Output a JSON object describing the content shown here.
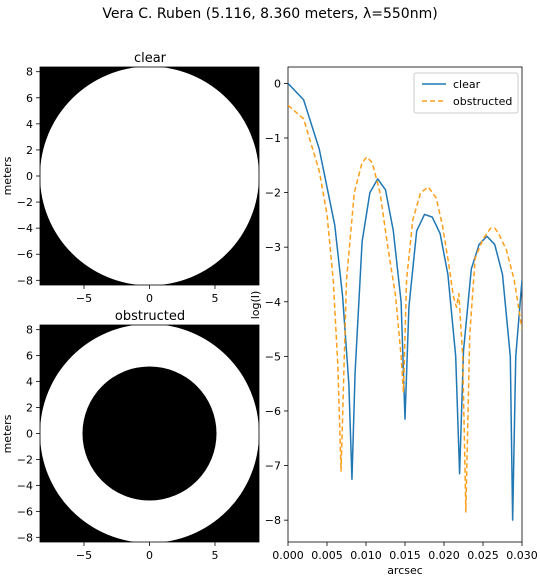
{
  "figure": {
    "suptitle": "Vera C. Ruben (5.116, 8.360 meters, λ=550nm)"
  },
  "colors": {
    "clear": "#1f77b4",
    "obstructed": "#ff9f1a",
    "pupil_fill": "#ffffff",
    "pupil_background": "#000000"
  },
  "chart_data": [
    {
      "type": "heatmap",
      "title": "clear",
      "xlabel": "",
      "ylabel": "meters",
      "xlim": [
        -8.36,
        8.36
      ],
      "ylim": [
        -8.36,
        8.36
      ],
      "xticks": [
        -5,
        0,
        5
      ],
      "yticks": [
        -8,
        -6,
        -4,
        -2,
        0,
        2,
        4,
        6,
        8
      ],
      "outer_radius": 8.36,
      "inner_radius": 0
    },
    {
      "type": "heatmap",
      "title": "obstructed",
      "xlabel": "",
      "ylabel": "meters",
      "xlim": [
        -8.36,
        8.36
      ],
      "ylim": [
        -8.36,
        8.36
      ],
      "xticks": [
        -5,
        0,
        5
      ],
      "yticks": [
        -8,
        -6,
        -4,
        -2,
        0,
        2,
        4,
        6,
        8
      ],
      "outer_radius": 8.36,
      "inner_radius": 5.116
    },
    {
      "type": "line",
      "title": "",
      "xlabel": "arcsec",
      "ylabel": "log(I)",
      "xlim": [
        0,
        0.03
      ],
      "ylim": [
        -8.4,
        0.3
      ],
      "xticks": [
        0.0,
        0.005,
        0.01,
        0.015,
        0.02,
        0.025,
        0.03
      ],
      "xtick_labels": [
        "0.000",
        "0.005",
        "0.010",
        "0.015",
        "0.020",
        "0.025",
        "0.030"
      ],
      "yticks": [
        0,
        -1,
        -2,
        -3,
        -4,
        -5,
        -6,
        -7,
        -8
      ],
      "ytick_labels": [
        "0",
        "−1",
        "−2",
        "−3",
        "−4",
        "−5",
        "−6",
        "−7",
        "−8"
      ],
      "legend": "top-right",
      "grid": false,
      "series": [
        {
          "name": "clear",
          "style": "solid",
          "x": [
            0.0,
            0.002,
            0.004,
            0.006,
            0.007,
            0.0078,
            0.0082,
            0.0086,
            0.0095,
            0.0105,
            0.0115,
            0.0125,
            0.0135,
            0.0145,
            0.015,
            0.0155,
            0.0165,
            0.0175,
            0.0185,
            0.0195,
            0.0205,
            0.0215,
            0.022,
            0.0225,
            0.0235,
            0.0245,
            0.0255,
            0.0265,
            0.0275,
            0.0285,
            0.0288,
            0.0292,
            0.03
          ],
          "y": [
            0.0,
            -0.3,
            -1.2,
            -2.6,
            -3.9,
            -5.5,
            -7.25,
            -5.3,
            -2.9,
            -2.0,
            -1.75,
            -1.95,
            -2.7,
            -4.0,
            -6.15,
            -4.1,
            -2.7,
            -2.4,
            -2.45,
            -2.75,
            -3.5,
            -5.0,
            -7.15,
            -4.9,
            -3.4,
            -2.95,
            -2.8,
            -2.95,
            -3.5,
            -5.0,
            -8.0,
            -5.0,
            -3.6
          ]
        },
        {
          "name": "obstructed",
          "style": "dashed",
          "x": [
            0.0,
            0.002,
            0.004,
            0.005,
            0.0058,
            0.0064,
            0.0068,
            0.0075,
            0.0085,
            0.0095,
            0.0101,
            0.0108,
            0.0118,
            0.0128,
            0.0138,
            0.0145,
            0.0148,
            0.0152,
            0.016,
            0.017,
            0.018,
            0.019,
            0.0198,
            0.0206,
            0.0212,
            0.0216,
            0.0219,
            0.0224,
            0.0228,
            0.0233,
            0.024,
            0.025,
            0.026,
            0.0265,
            0.027,
            0.028,
            0.029,
            0.03
          ],
          "y": [
            -0.4,
            -0.65,
            -1.6,
            -2.4,
            -3.6,
            -5.2,
            -7.1,
            -3.6,
            -2.0,
            -1.45,
            -1.35,
            -1.45,
            -2.0,
            -3.0,
            -3.9,
            -5.0,
            -5.65,
            -3.6,
            -2.5,
            -2.0,
            -1.9,
            -2.1,
            -2.6,
            -3.3,
            -3.9,
            -4.1,
            -3.85,
            -5.0,
            -7.85,
            -4.6,
            -3.2,
            -2.85,
            -2.65,
            -2.65,
            -2.75,
            -3.05,
            -3.6,
            -4.5
          ]
        }
      ]
    }
  ]
}
